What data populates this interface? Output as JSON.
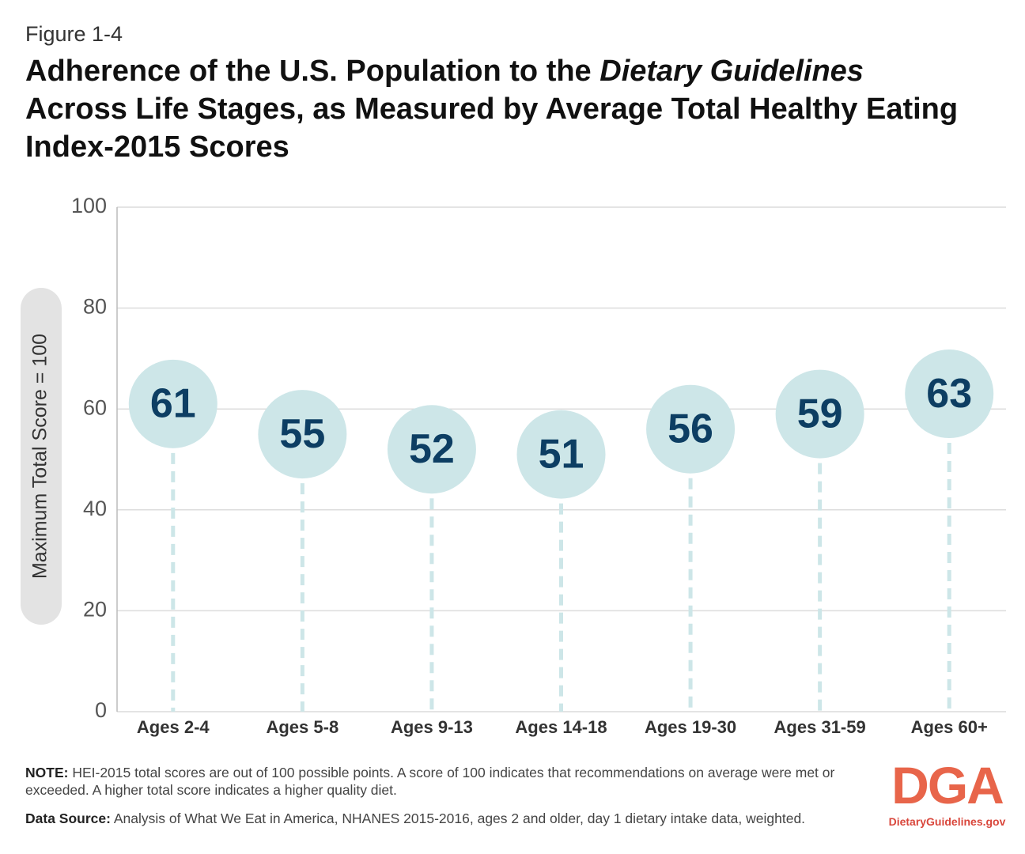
{
  "figure_label": "Figure 1-4",
  "chart_data": {
    "type": "lollipop",
    "title_parts": [
      "Adherence of the U.S. Population to the ",
      "Dietary Guidelines",
      " Across Life Stages, as Measured by Average Total Healthy Eating Index-2015 Scores"
    ],
    "y_label": "Maximum Total Score = 100",
    "categories": [
      "Ages 2-4",
      "Ages 5-8",
      "Ages 9-13",
      "Ages 14-18",
      "Ages 19-30",
      "Ages 31-59",
      "Ages 60+"
    ],
    "values": [
      61,
      55,
      52,
      51,
      56,
      59,
      63
    ],
    "color": "#cde6e8",
    "label_color": "#0d3e63",
    "ylim": [
      0,
      100
    ],
    "yticks": [
      0,
      20,
      40,
      60,
      80,
      100
    ],
    "grid": true
  },
  "note": {
    "label": "NOTE:",
    "text": " HEI-2015 total scores are out of 100 possible points. A score of 100 indicates that recommendations on average were met or exceeded. A higher total score indicates a higher quality diet."
  },
  "source": {
    "label": "Data Source:",
    "text": " Analysis of What We Eat in America, NHANES 2015-2016, ages 2 and older, day 1 dietary intake data, weighted."
  },
  "logo": {
    "mark": "DGA",
    "url": "DietaryGuidelines.gov"
  }
}
